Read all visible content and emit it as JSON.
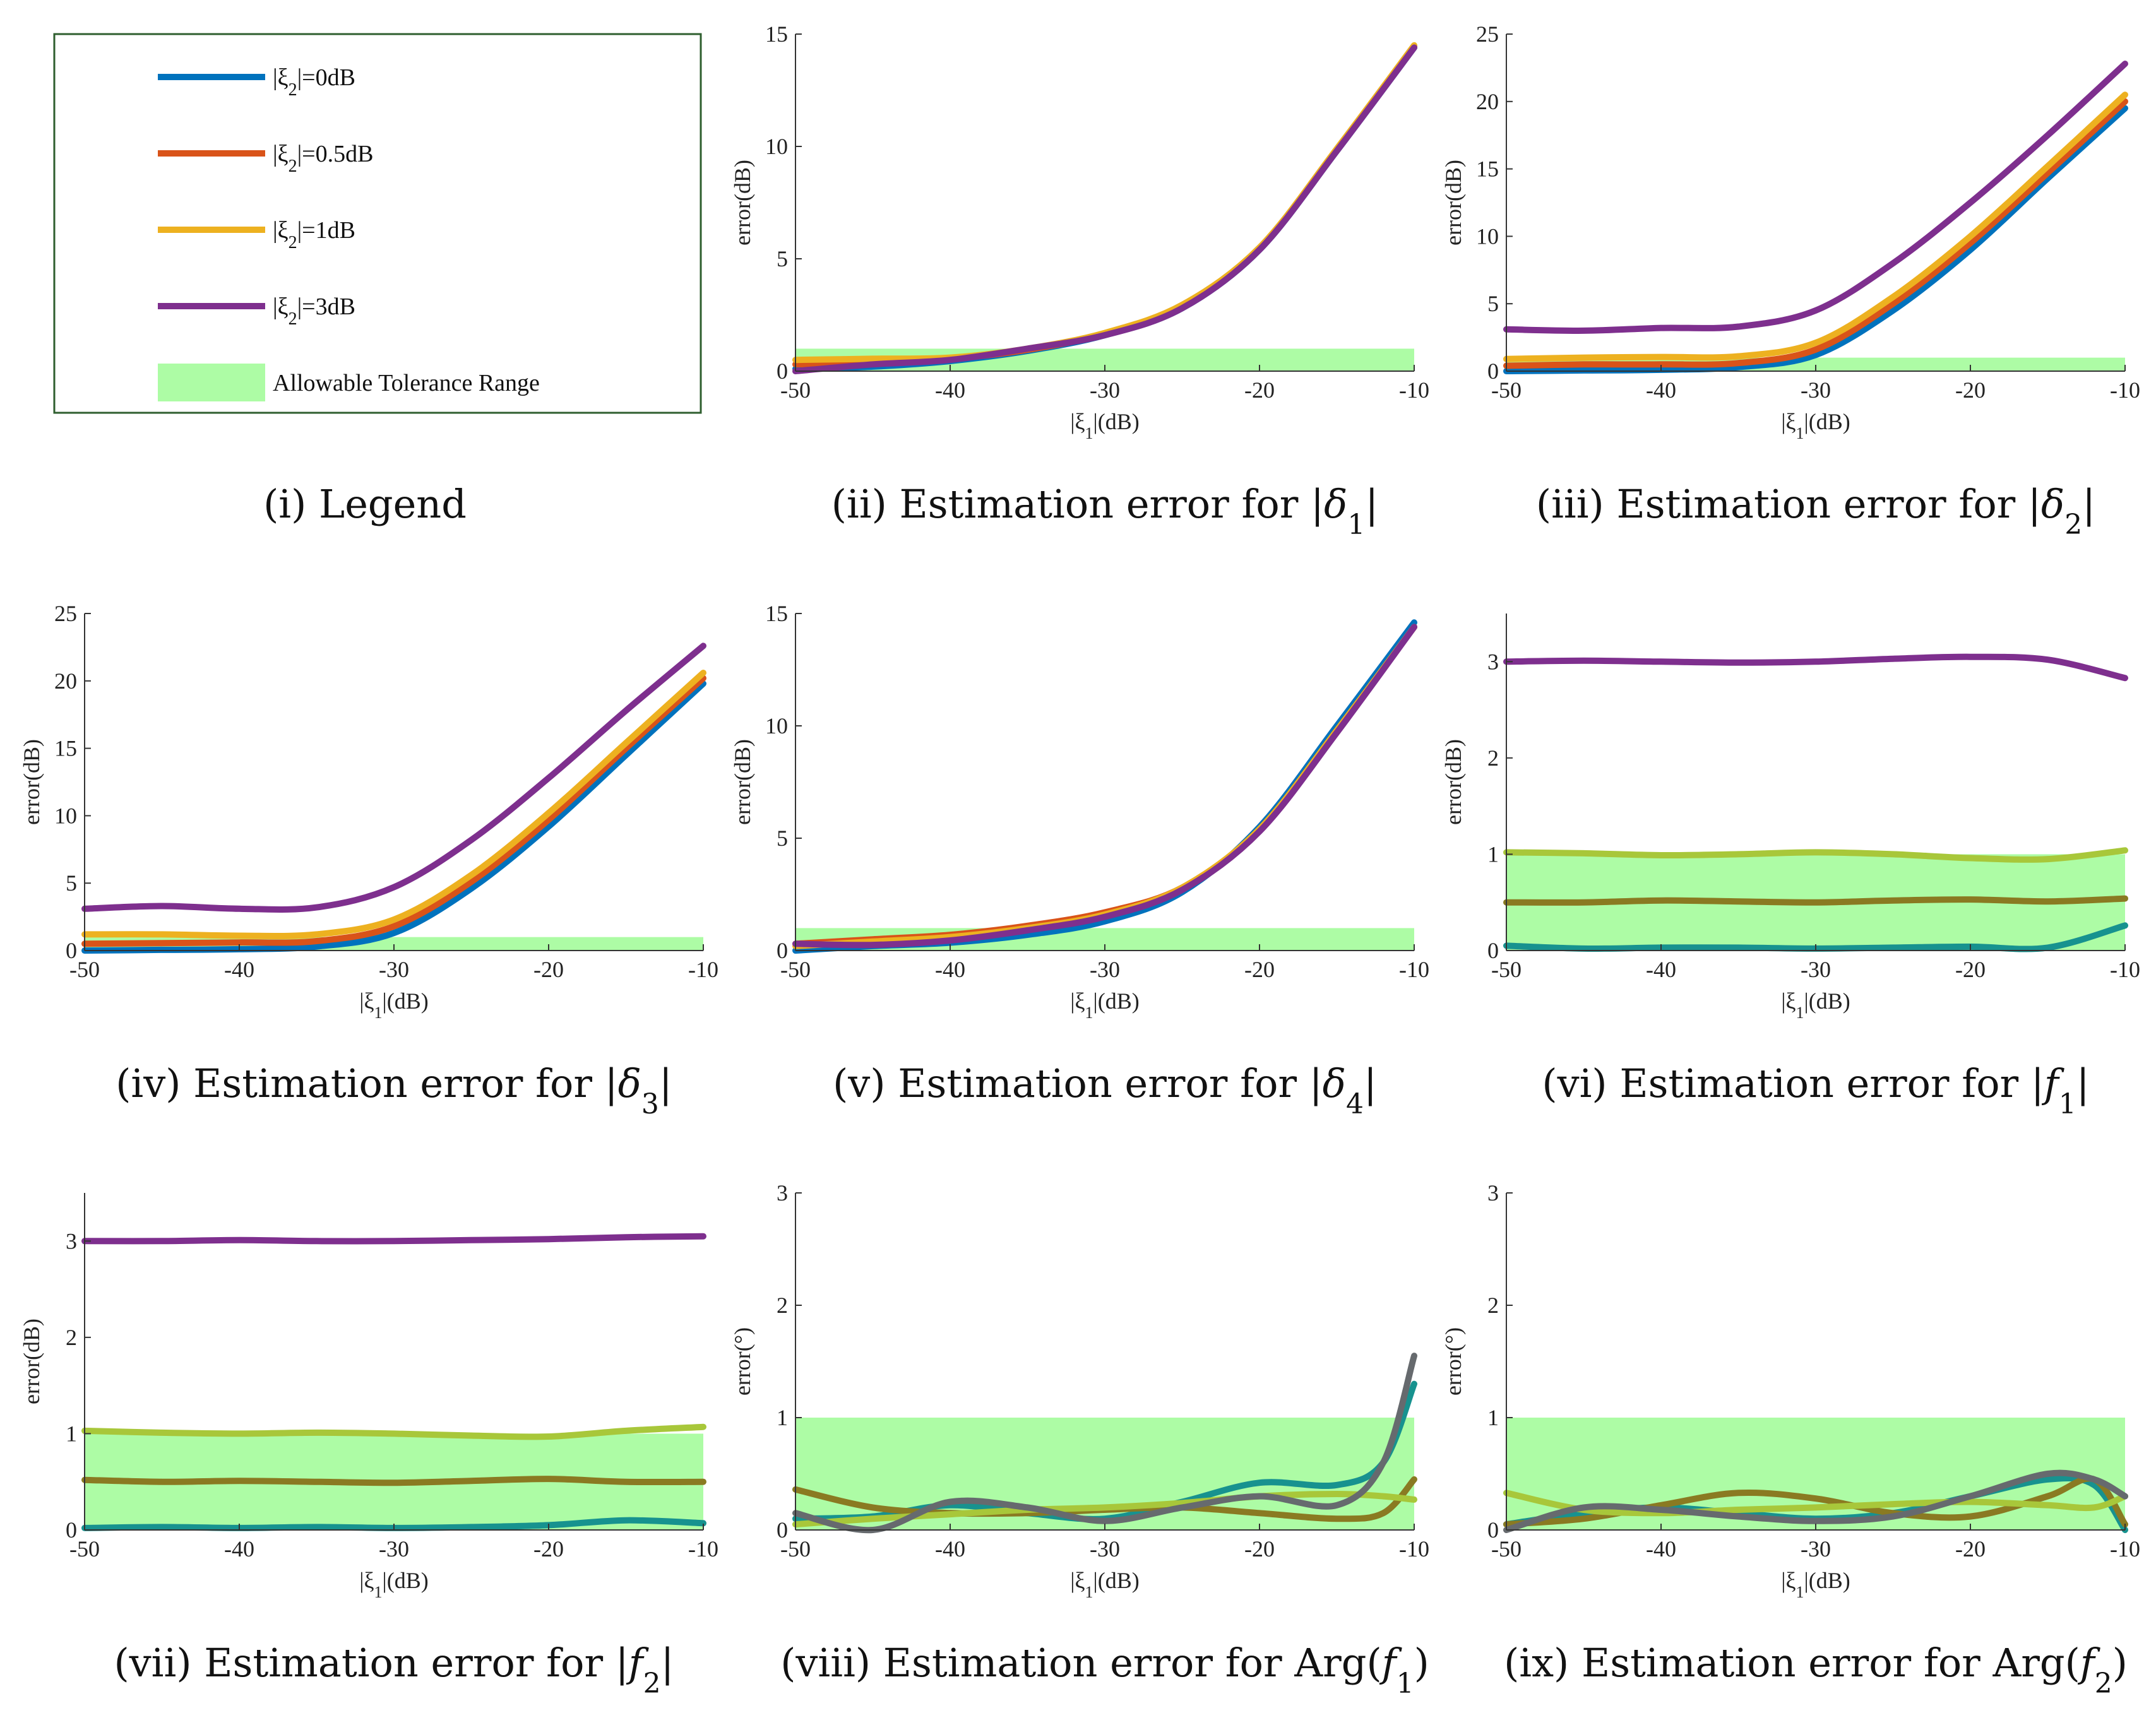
{
  "colors": {
    "s0": "#0072BD",
    "s1": "#D95319",
    "s2": "#EDB120",
    "s3": "#7E2F8E",
    "tolerance": "#adfca5",
    "legend_border": "#2e5e2e"
  },
  "legend": {
    "items": [
      {
        "prefix": "|ξ",
        "sub": "2",
        "suffix": "|=0dB",
        "color": "#0072BD",
        "kind": "line"
      },
      {
        "prefix": "|ξ",
        "sub": "2",
        "suffix": "|=0.5dB",
        "color": "#D95319",
        "kind": "line"
      },
      {
        "prefix": "|ξ",
        "sub": "2",
        "suffix": "|=1dB",
        "color": "#EDB120",
        "kind": "line"
      },
      {
        "prefix": "|ξ",
        "sub": "2",
        "suffix": "|=3dB",
        "color": "#7E2F8E",
        "kind": "line"
      },
      {
        "prefix": "Allowable Tolerance Range",
        "sub": "",
        "suffix": "",
        "color": "#adfca5",
        "kind": "patch"
      }
    ],
    "caption": "(i) Legend"
  },
  "chart_data": [
    {
      "type": "line",
      "caption": {
        "pre": "(ii) Estimation error for |",
        "sym": "δ",
        "sub": "1",
        "post": "|"
      },
      "xlabel": {
        "pre": "|ξ",
        "sub": "1",
        "post": "|(dB)"
      },
      "ylabel": "error(dB)",
      "xlim": [
        -50,
        -10
      ],
      "ylim": [
        0,
        15
      ],
      "xticks": [
        -50,
        -40,
        -30,
        -20,
        -10
      ],
      "yticks": [
        0,
        5,
        10,
        15
      ],
      "tolerance": [
        0,
        1
      ],
      "x": [
        -50,
        -45,
        -40,
        -35,
        -30,
        -25,
        -20,
        -15,
        -10
      ],
      "series": [
        {
          "name": "|ξ2|=0dB",
          "color": "#0072BD",
          "values": [
            0.1,
            0.2,
            0.45,
            0.9,
            1.6,
            2.8,
            5.4,
            9.8,
            14.4
          ]
        },
        {
          "name": "|ξ2|=0.5dB",
          "color": "#D95319",
          "values": [
            0.3,
            0.4,
            0.55,
            0.95,
            1.65,
            2.85,
            5.45,
            9.85,
            14.45
          ]
        },
        {
          "name": "|ξ2|=1dB",
          "color": "#EDB120",
          "values": [
            0.5,
            0.55,
            0.6,
            1.0,
            1.7,
            2.95,
            5.5,
            9.9,
            14.5
          ]
        },
        {
          "name": "|ξ2|=3dB",
          "color": "#7E2F8E",
          "values": [
            0.0,
            0.3,
            0.5,
            1.0,
            1.6,
            2.8,
            5.4,
            9.8,
            14.4
          ]
        }
      ]
    },
    {
      "type": "line",
      "caption": {
        "pre": "(iii) Estimation error for |",
        "sym": "δ",
        "sub": "2",
        "post": "|"
      },
      "xlabel": {
        "pre": "|ξ",
        "sub": "1",
        "post": "|(dB)"
      },
      "ylabel": "error(dB)",
      "xlim": [
        -50,
        -10
      ],
      "ylim": [
        0,
        25
      ],
      "xticks": [
        -50,
        -40,
        -30,
        -20,
        -10
      ],
      "yticks": [
        0,
        5,
        10,
        15,
        20,
        25
      ],
      "tolerance": [
        0,
        1
      ],
      "x": [
        -50,
        -45,
        -40,
        -35,
        -30,
        -25,
        -20,
        -15,
        -10
      ],
      "series": [
        {
          "name": "|ξ2|=0dB",
          "color": "#0072BD",
          "values": [
            0.0,
            0.05,
            0.1,
            0.3,
            1.2,
            4.5,
            9.0,
            14.3,
            19.5
          ]
        },
        {
          "name": "|ξ2|=0.5dB",
          "color": "#D95319",
          "values": [
            0.4,
            0.5,
            0.5,
            0.6,
            1.6,
            5.0,
            9.5,
            14.7,
            20.0
          ]
        },
        {
          "name": "|ξ2|=1dB",
          "color": "#EDB120",
          "values": [
            0.9,
            1.0,
            1.05,
            1.1,
            2.1,
            5.5,
            10.0,
            15.2,
            20.5
          ]
        },
        {
          "name": "|ξ2|=3dB",
          "color": "#7E2F8E",
          "values": [
            3.1,
            3.0,
            3.2,
            3.3,
            4.5,
            8.0,
            12.5,
            17.5,
            22.8
          ]
        }
      ]
    },
    {
      "type": "line",
      "caption": {
        "pre": "(iv) Estimation error for |",
        "sym": "δ",
        "sub": "3",
        "post": "|"
      },
      "xlabel": {
        "pre": "|ξ",
        "sub": "1",
        "post": "|(dB)"
      },
      "ylabel": "error(dB)",
      "xlim": [
        -50,
        -10
      ],
      "ylim": [
        0,
        25
      ],
      "xticks": [
        -50,
        -40,
        -30,
        -20,
        -10
      ],
      "yticks": [
        0,
        5,
        10,
        15,
        20,
        25
      ],
      "tolerance": [
        0,
        1
      ],
      "x": [
        -50,
        -45,
        -40,
        -35,
        -30,
        -25,
        -20,
        -15,
        -10
      ],
      "series": [
        {
          "name": "|ξ2|=0dB",
          "color": "#0072BD",
          "values": [
            0.0,
            0.05,
            0.1,
            0.3,
            1.3,
            4.6,
            9.2,
            14.5,
            19.8
          ]
        },
        {
          "name": "|ξ2|=0.5dB",
          "color": "#D95319",
          "values": [
            0.5,
            0.55,
            0.6,
            0.7,
            1.8,
            5.1,
            9.7,
            15.0,
            20.2
          ]
        },
        {
          "name": "|ξ2|=1dB",
          "color": "#EDB120",
          "values": [
            1.2,
            1.2,
            1.1,
            1.2,
            2.3,
            5.6,
            10.2,
            15.4,
            20.6
          ]
        },
        {
          "name": "|ξ2|=3dB",
          "color": "#7E2F8E",
          "values": [
            3.1,
            3.3,
            3.1,
            3.2,
            4.7,
            8.2,
            12.8,
            17.8,
            22.6
          ]
        }
      ]
    },
    {
      "type": "line",
      "caption": {
        "pre": "(v) Estimation error for |",
        "sym": "δ",
        "sub": "4",
        "post": "|"
      },
      "xlabel": {
        "pre": "|ξ",
        "sub": "1",
        "post": "|(dB)"
      },
      "ylabel": "error(dB)",
      "xlim": [
        -50,
        -10
      ],
      "ylim": [
        0,
        15
      ],
      "xticks": [
        -50,
        -40,
        -30,
        -20,
        -10
      ],
      "yticks": [
        0,
        5,
        10,
        15
      ],
      "tolerance": [
        0,
        1
      ],
      "x": [
        -50,
        -45,
        -40,
        -35,
        -30,
        -25,
        -20,
        -15,
        -10
      ],
      "series": [
        {
          "name": "|ξ2|=0dB",
          "color": "#0072BD",
          "values": [
            0.0,
            0.2,
            0.35,
            0.7,
            1.3,
            2.6,
            5.5,
            10.0,
            14.6
          ]
        },
        {
          "name": "|ξ2|=0.5dB",
          "color": "#D95319",
          "values": [
            0.3,
            0.5,
            0.7,
            1.1,
            1.7,
            2.8,
            5.4,
            9.8,
            14.4
          ]
        },
        {
          "name": "|ξ2|=1dB",
          "color": "#EDB120",
          "values": [
            0.2,
            0.4,
            0.6,
            1.0,
            1.6,
            2.8,
            5.4,
            9.8,
            14.4
          ]
        },
        {
          "name": "|ξ2|=3dB",
          "color": "#7E2F8E",
          "values": [
            0.3,
            0.25,
            0.45,
            0.9,
            1.5,
            2.7,
            5.3,
            9.7,
            14.4
          ]
        }
      ]
    },
    {
      "type": "line",
      "caption": {
        "pre": "(vi) Estimation error for |",
        "sym": "f",
        "sub": "1",
        "post": "|"
      },
      "xlabel": {
        "pre": "|ξ",
        "sub": "1",
        "post": "|(dB)"
      },
      "ylabel": "error(dB)",
      "xlim": [
        -50,
        -10
      ],
      "ylim": [
        0,
        3.5
      ],
      "xticks": [
        -50,
        -40,
        -30,
        -20,
        -10
      ],
      "yticks": [
        0,
        1,
        2,
        3
      ],
      "tolerance": [
        0,
        1
      ],
      "x": [
        -50,
        -45,
        -40,
        -35,
        -30,
        -25,
        -20,
        -15,
        -10
      ],
      "series": [
        {
          "name": "|ξ2|=0dB",
          "color": "#17928f",
          "values": [
            0.05,
            0.02,
            0.03,
            0.03,
            0.02,
            0.03,
            0.04,
            0.03,
            0.26
          ]
        },
        {
          "name": "|ξ2|=0.5dB",
          "color": "#8a7a22",
          "values": [
            0.5,
            0.5,
            0.52,
            0.51,
            0.5,
            0.52,
            0.53,
            0.51,
            0.54
          ]
        },
        {
          "name": "|ξ2|=1dB",
          "color": "#a8c73a",
          "values": [
            1.02,
            1.01,
            0.99,
            1.0,
            1.02,
            1.0,
            0.96,
            0.95,
            1.04
          ]
        },
        {
          "name": "|ξ2|=3dB",
          "color": "#7E2F8E",
          "values": [
            3.0,
            3.01,
            3.0,
            2.99,
            3.0,
            3.03,
            3.05,
            3.02,
            2.83
          ]
        }
      ]
    },
    {
      "type": "line",
      "caption": {
        "pre": "(vii) Estimation error for |",
        "sym": "f",
        "sub": "2",
        "post": "|"
      },
      "xlabel": {
        "pre": "|ξ",
        "sub": "1",
        "post": "|(dB)"
      },
      "ylabel": "error(dB)",
      "xlim": [
        -50,
        -10
      ],
      "ylim": [
        0,
        3.5
      ],
      "xticks": [
        -50,
        -40,
        -30,
        -20,
        -10
      ],
      "yticks": [
        0,
        1,
        2,
        3
      ],
      "tolerance": [
        0,
        1
      ],
      "x": [
        -50,
        -45,
        -40,
        -35,
        -30,
        -25,
        -20,
        -15,
        -10
      ],
      "series": [
        {
          "name": "|ξ2|=0dB",
          "color": "#17928f",
          "values": [
            0.02,
            0.03,
            0.02,
            0.03,
            0.02,
            0.03,
            0.05,
            0.1,
            0.07
          ]
        },
        {
          "name": "|ξ2|=0.5dB",
          "color": "#8a7a22",
          "values": [
            0.52,
            0.5,
            0.51,
            0.5,
            0.49,
            0.51,
            0.53,
            0.5,
            0.5
          ]
        },
        {
          "name": "|ξ2|=1dB",
          "color": "#a8c73a",
          "values": [
            1.03,
            1.01,
            1.0,
            1.01,
            1.0,
            0.98,
            0.97,
            1.03,
            1.07
          ]
        },
        {
          "name": "|ξ2|=3dB",
          "color": "#7E2F8E",
          "values": [
            3.0,
            3.0,
            3.01,
            3.0,
            3.0,
            3.01,
            3.02,
            3.04,
            3.05
          ]
        }
      ]
    },
    {
      "type": "line",
      "caption": {
        "pre": "(viii) Estimation error for Arg(",
        "sym": "f",
        "sub": "1",
        "post": ")"
      },
      "xlabel": {
        "pre": "|ξ",
        "sub": "1",
        "post": "|(dB)"
      },
      "ylabel": "error(°)",
      "xlim": [
        -50,
        -10
      ],
      "ylim": [
        0,
        3
      ],
      "xticks": [
        -50,
        -40,
        -30,
        -20,
        -10
      ],
      "yticks": [
        0,
        1,
        2,
        3
      ],
      "tolerance": [
        0,
        1
      ],
      "x": [
        -50,
        -45,
        -40,
        -35,
        -30,
        -25,
        -20,
        -15,
        -12,
        -10
      ],
      "series": [
        {
          "name": "|ξ2|=0dB",
          "color": "#17928f",
          "values": [
            0.1,
            0.12,
            0.22,
            0.15,
            0.1,
            0.25,
            0.42,
            0.4,
            0.6,
            1.3
          ]
        },
        {
          "name": "|ξ2|=0.5dB",
          "color": "#8a7a22",
          "values": [
            0.36,
            0.2,
            0.15,
            0.15,
            0.18,
            0.2,
            0.15,
            0.1,
            0.15,
            0.45
          ]
        },
        {
          "name": "|ξ2|=1dB",
          "color": "#a8c73a",
          "values": [
            0.05,
            0.1,
            0.14,
            0.18,
            0.2,
            0.24,
            0.3,
            0.32,
            0.3,
            0.27
          ]
        },
        {
          "name": "|ξ2|=3dB",
          "color": "#666a6e",
          "values": [
            0.15,
            0.0,
            0.25,
            0.2,
            0.08,
            0.2,
            0.3,
            0.22,
            0.6,
            1.55
          ]
        }
      ]
    },
    {
      "type": "line",
      "caption": {
        "pre": "(ix) Estimation error for Arg(",
        "sym": "f",
        "sub": "2",
        "post": ")"
      },
      "xlabel": {
        "pre": "|ξ",
        "sub": "1",
        "post": "|(dB)"
      },
      "ylabel": "error(°)",
      "xlim": [
        -50,
        -10
      ],
      "ylim": [
        0,
        3
      ],
      "xticks": [
        -50,
        -40,
        -30,
        -20,
        -10
      ],
      "yticks": [
        0,
        1,
        2,
        3
      ],
      "tolerance": [
        0,
        1
      ],
      "x": [
        -50,
        -45,
        -40,
        -35,
        -30,
        -25,
        -20,
        -15,
        -12,
        -10
      ],
      "series": [
        {
          "name": "|ξ2|=0dB",
          "color": "#17928f",
          "values": [
            0.05,
            0.15,
            0.2,
            0.15,
            0.1,
            0.15,
            0.3,
            0.45,
            0.4,
            0.0
          ]
        },
        {
          "name": "|ξ2|=0.5dB",
          "color": "#8a7a22",
          "values": [
            0.05,
            0.1,
            0.22,
            0.33,
            0.28,
            0.15,
            0.12,
            0.3,
            0.45,
            0.05
          ]
        },
        {
          "name": "|ξ2|=1dB",
          "color": "#a8c73a",
          "values": [
            0.33,
            0.18,
            0.15,
            0.18,
            0.2,
            0.23,
            0.25,
            0.22,
            0.2,
            0.3
          ]
        },
        {
          "name": "|ξ2|=3dB",
          "color": "#666a6e",
          "values": [
            0.0,
            0.2,
            0.18,
            0.12,
            0.08,
            0.12,
            0.3,
            0.5,
            0.45,
            0.3
          ]
        }
      ]
    }
  ]
}
